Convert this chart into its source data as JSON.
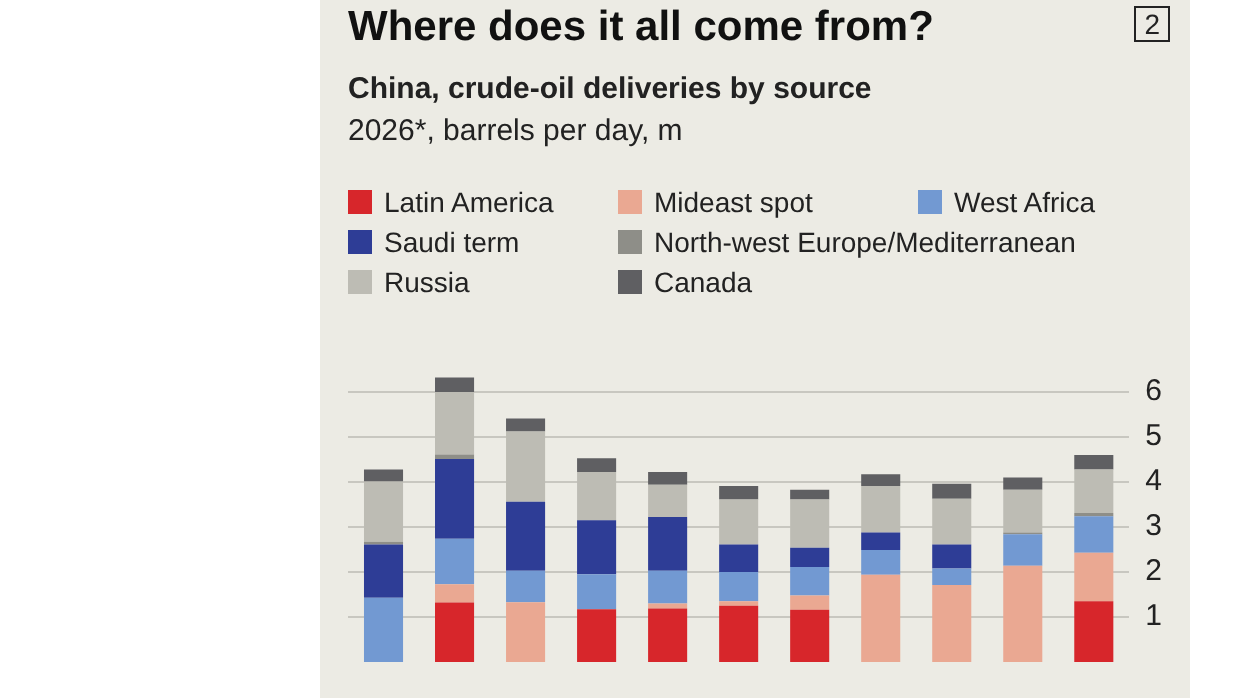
{
  "chart_data": {
    "type": "bar",
    "title": "Where does it all come from?",
    "subtitle": "China, crude-oil deliveries by source",
    "annotations": [
      "2",
      "2026*, barrels per day, m"
    ],
    "categories": [
      null,
      null,
      null,
      null,
      null,
      null,
      null,
      null,
      null,
      null,
      null
    ],
    "stacked": true,
    "legend": "top",
    "grid": "y",
    "tick_labels": "y",
    "ylim": [
      0,
      6.4
    ],
    "yticks": [
      1,
      2,
      3,
      4,
      5,
      6
    ],
    "series": [
      {
        "name": "Latin America",
        "color": "#d7262b",
        "values": [
          0,
          1.32,
          0,
          1.17,
          1.19,
          1.25,
          1.16,
          0,
          0,
          0,
          1.35
        ]
      },
      {
        "name": "Mideast spot",
        "color": "#eaa892",
        "values": [
          0,
          0.41,
          1.33,
          0,
          0.11,
          0.1,
          0.32,
          1.94,
          1.71,
          2.14,
          1.08
        ]
      },
      {
        "name": "West Africa",
        "color": "#7299d2",
        "values": [
          1.43,
          1.01,
          0.7,
          0.78,
          0.73,
          0.65,
          0.63,
          0.55,
          0.37,
          0.7,
          0.81
        ]
      },
      {
        "name": "Saudi term",
        "color": "#2e3d96",
        "values": [
          1.18,
          1.77,
          1.53,
          1.2,
          1.19,
          0.61,
          0.43,
          0.39,
          0.53,
          0,
          0
        ]
      },
      {
        "name": "North-west Europe/Mediterranean",
        "color": "#8e8e88",
        "values": [
          0.06,
          0.1,
          0,
          0,
          0,
          0,
          0,
          0,
          0,
          0.04,
          0.07
        ]
      },
      {
        "name": "Russia",
        "color": "#bdbcb4",
        "values": [
          1.34,
          1.39,
          1.56,
          1.07,
          0.72,
          1.0,
          1.07,
          1.03,
          1.02,
          0.95,
          0.97
        ]
      },
      {
        "name": "Canada",
        "color": "#5f5f62",
        "values": [
          0.27,
          0.32,
          0.29,
          0.31,
          0.28,
          0.3,
          0.22,
          0.26,
          0.33,
          0.27,
          0.32
        ]
      }
    ]
  }
}
